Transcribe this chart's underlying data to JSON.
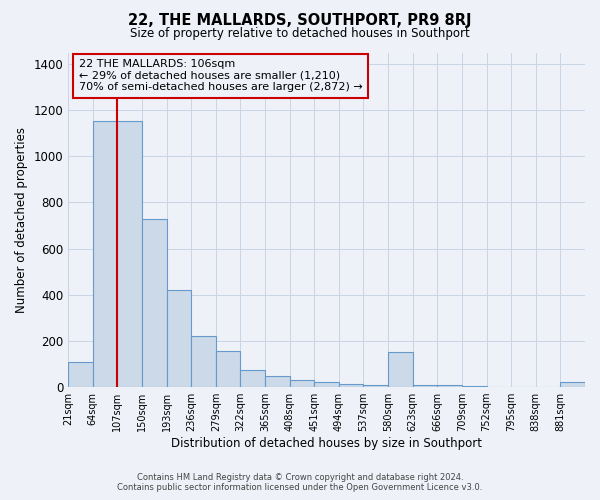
{
  "title": "22, THE MALLARDS, SOUTHPORT, PR9 8RJ",
  "subtitle": "Size of property relative to detached houses in Southport",
  "xlabel": "Distribution of detached houses by size in Southport",
  "ylabel": "Number of detached properties",
  "bar_labels": [
    "21sqm",
    "64sqm",
    "107sqm",
    "150sqm",
    "193sqm",
    "236sqm",
    "279sqm",
    "322sqm",
    "365sqm",
    "408sqm",
    "451sqm",
    "494sqm",
    "537sqm",
    "580sqm",
    "623sqm",
    "666sqm",
    "709sqm",
    "752sqm",
    "795sqm",
    "838sqm",
    "881sqm"
  ],
  "bar_values": [
    110,
    1155,
    1155,
    730,
    420,
    220,
    155,
    75,
    50,
    30,
    20,
    15,
    10,
    150,
    10,
    7,
    3,
    0,
    0,
    0,
    20
  ],
  "bar_color": "#ccd9e8",
  "bar_edgecolor": "#6699cc",
  "bar_linewidth": 0.8,
  "grid_color": "#c8d4e4",
  "background_color": "#eef2f8",
  "annotation_text": "22 THE MALLARDS: 106sqm\n← 29% of detached houses are smaller (1,210)\n70% of semi-detached houses are larger (2,872) →",
  "annotation_box_edgecolor": "#cc0000",
  "vline_x": 107,
  "vline_color": "#cc0000",
  "ylim": [
    0,
    1450
  ],
  "yticks": [
    0,
    200,
    400,
    600,
    800,
    1000,
    1200,
    1400
  ],
  "footer_line1": "Contains HM Land Registry data © Crown copyright and database right 2024.",
  "footer_line2": "Contains public sector information licensed under the Open Government Licence v3.0.",
  "bin_edges": [
    21,
    64,
    107,
    150,
    193,
    236,
    279,
    322,
    365,
    408,
    451,
    494,
    537,
    580,
    623,
    666,
    709,
    752,
    795,
    838,
    881,
    924
  ]
}
